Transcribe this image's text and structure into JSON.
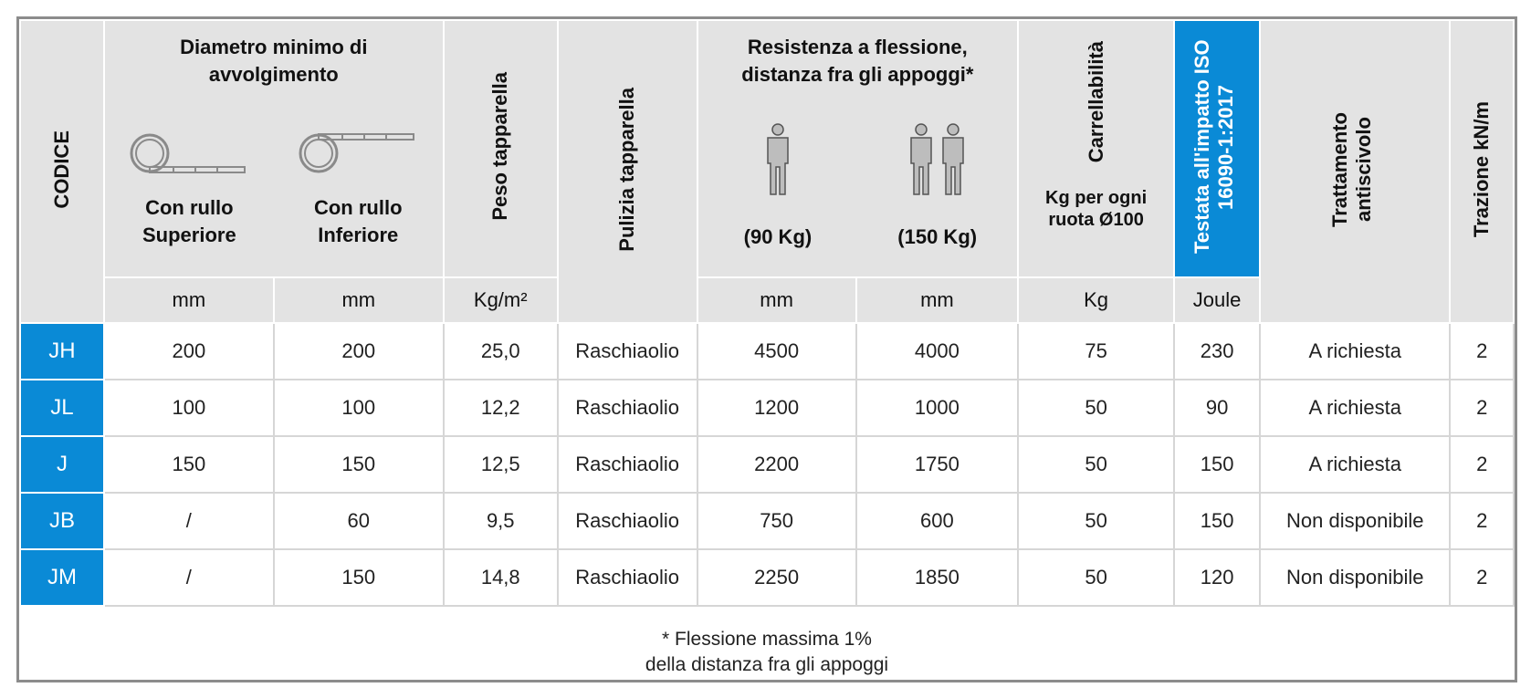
{
  "headers": {
    "codice": "CODICE",
    "diametro": "Diametro minimo di avvolgimento",
    "con_rullo_superiore": "Con rullo Superiore",
    "con_rullo_inferiore": "Con rullo Inferiore",
    "peso": "Peso tapparella",
    "pulizia": "Pulizia tapparella",
    "resistenza": "Resistenza a flessione, distanza fra gli appoggi*",
    "persona_90": "(90 Kg)",
    "persona_150": "(150 Kg)",
    "carrellabilita": "Carrellabilità",
    "kg_per_ruota": "Kg per ogni ruota Ø100",
    "testata": "Testata all'impatto ISO 16090-1:2017",
    "trattamento": "Trattamento antiscivolo",
    "trazione": "Trazione kN/m"
  },
  "units": {
    "mm_sup": "mm",
    "mm_inf": "mm",
    "peso": "Kg/m²",
    "mm_90": "mm",
    "mm_150": "mm",
    "kg": "Kg",
    "joule": "Joule"
  },
  "rows": [
    {
      "code": "JH",
      "sup": "200",
      "inf": "200",
      "peso": "25,0",
      "pulizia": "Raschiaolio",
      "r90": "4500",
      "r150": "4000",
      "carr": "75",
      "joule": "230",
      "tratt": "A richiesta",
      "traz": "2"
    },
    {
      "code": "JL",
      "sup": "100",
      "inf": "100",
      "peso": "12,2",
      "pulizia": "Raschiaolio",
      "r90": "1200",
      "r150": "1000",
      "carr": "50",
      "joule": "90",
      "tratt": "A richiesta",
      "traz": "2"
    },
    {
      "code": "J",
      "sup": "150",
      "inf": "150",
      "peso": "12,5",
      "pulizia": "Raschiaolio",
      "r90": "2200",
      "r150": "1750",
      "carr": "50",
      "joule": "150",
      "tratt": "A richiesta",
      "traz": "2"
    },
    {
      "code": "JB",
      "sup": "/",
      "inf": "60",
      "peso": "9,5",
      "pulizia": "Raschiaolio",
      "r90": "750",
      "r150": "600",
      "carr": "50",
      "joule": "150",
      "tratt": "Non disponibile",
      "traz": "2"
    },
    {
      "code": "JM",
      "sup": "/",
      "inf": "150",
      "peso": "14,8",
      "pulizia": "Raschiaolio",
      "r90": "2250",
      "r150": "1850",
      "carr": "50",
      "joule": "120",
      "tratt": "Non disponibile",
      "traz": "2"
    }
  ],
  "footnote": {
    "line1": "* Flessione massima 1%",
    "line2": "della distanza fra gli appoggi"
  },
  "colors": {
    "accent_blue": "#0a8ad6",
    "header_gray": "#e3e3e3"
  },
  "icons": [
    "roller-top-icon",
    "roller-bottom-icon",
    "one-person-icon",
    "two-persons-icon"
  ]
}
